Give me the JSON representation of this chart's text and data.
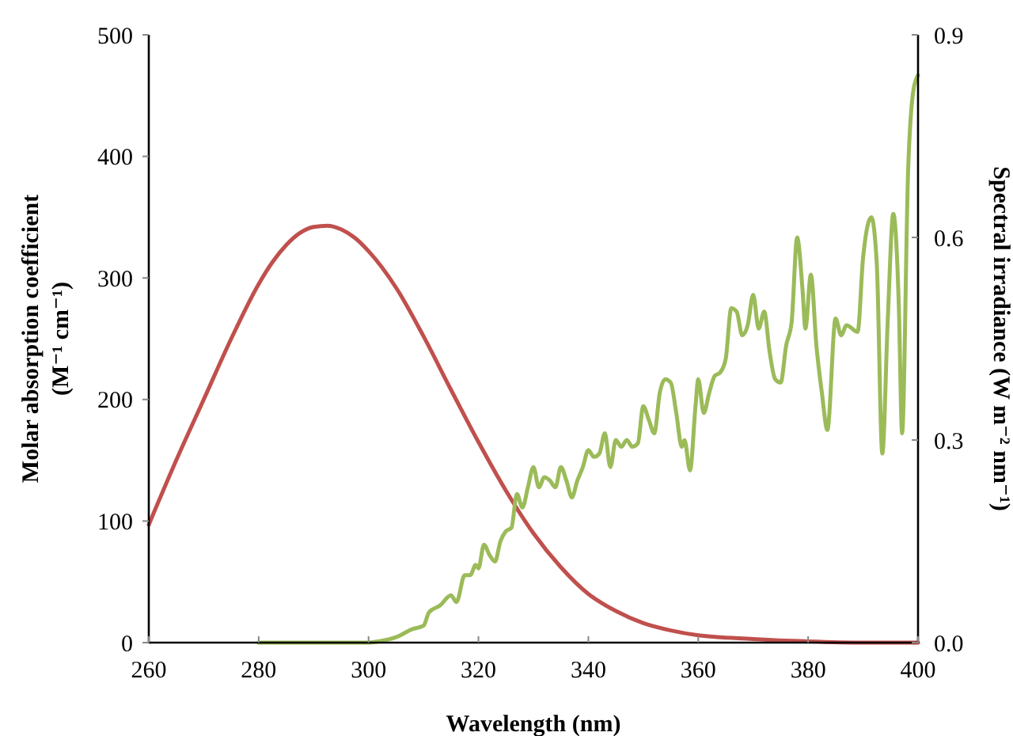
{
  "chart_data": {
    "type": "line",
    "xlabel": "Wavelength (nm)",
    "ylabel": "Molar absorption coefficient\n(M⁻¹ cm⁻¹)",
    "y2label": "Spectral irradiance (W m⁻² nm⁻¹)",
    "xlim": [
      260,
      400
    ],
    "xticks": [
      260,
      280,
      300,
      320,
      340,
      360,
      380,
      400
    ],
    "ylim": [
      0,
      500
    ],
    "yticks": [
      0,
      100,
      200,
      300,
      400,
      500
    ],
    "y2lim": [
      0,
      0.9
    ],
    "y2ticks": [
      {
        "value": 0,
        "label": "0.0"
      },
      {
        "value": 0.3,
        "label": "0.3"
      },
      {
        "value": 0.6,
        "label": "0.6"
      },
      {
        "value": 0.9,
        "label": "0.9"
      }
    ],
    "grid": false,
    "marker": "none",
    "line_style": "solid",
    "series": [
      {
        "color": "#c0504d",
        "x": [
          260,
          265,
          270,
          275,
          280,
          282.5,
          285,
          287.5,
          290,
          292.5,
          295,
          297.5,
          300,
          305,
          310,
          315,
          320,
          325,
          330,
          335,
          340,
          345,
          350,
          355,
          360,
          370,
          380,
          390,
          400
        ],
        "values": [
          97,
          150,
          200,
          250,
          295,
          313,
          327,
          337,
          342,
          343,
          340,
          333,
          322,
          292,
          252,
          208,
          165,
          125,
          90,
          62,
          40,
          26,
          16,
          10,
          6,
          3,
          1,
          0,
          0
        ]
      },
      {
        "color": "#9bbb59",
        "axis": "y2",
        "x": [
          280,
          300,
          302,
          305,
          308,
          310,
          311,
          313,
          315,
          316,
          317.5,
          318.5,
          319.5,
          320,
          321,
          322,
          323,
          324,
          325,
          326,
          327,
          328,
          329,
          330,
          331,
          332,
          333,
          334,
          335,
          336,
          337,
          338,
          339,
          340,
          341,
          342,
          343,
          344,
          345,
          346,
          347,
          348,
          349,
          350,
          351,
          352,
          353,
          354,
          355,
          356,
          357,
          357.5,
          358.5,
          359.5,
          360,
          361,
          362,
          363,
          364,
          365,
          366,
          367,
          368,
          369,
          370,
          371,
          372,
          373,
          374,
          375,
          376,
          377,
          378,
          379,
          379.5,
          380.5,
          381.5,
          382.5,
          383.5,
          385,
          386,
          387,
          389,
          390,
          391.5,
          392.5,
          393.5,
          394.5,
          395.5,
          396.5,
          397.1,
          398.2,
          399.2,
          400
        ],
        "values": [
          0,
          0,
          0.002,
          0.008,
          0.02,
          0.025,
          0.045,
          0.055,
          0.07,
          0.06,
          0.1,
          0.1,
          0.115,
          0.11,
          0.145,
          0.13,
          0.12,
          0.15,
          0.165,
          0.17,
          0.22,
          0.2,
          0.23,
          0.26,
          0.23,
          0.245,
          0.24,
          0.23,
          0.26,
          0.24,
          0.215,
          0.24,
          0.26,
          0.285,
          0.275,
          0.28,
          0.31,
          0.26,
          0.3,
          0.29,
          0.3,
          0.29,
          0.295,
          0.35,
          0.33,
          0.31,
          0.37,
          0.39,
          0.385,
          0.34,
          0.29,
          0.3,
          0.255,
          0.35,
          0.39,
          0.34,
          0.37,
          0.395,
          0.4,
          0.42,
          0.495,
          0.49,
          0.455,
          0.47,
          0.515,
          0.465,
          0.49,
          0.43,
          0.39,
          0.385,
          0.44,
          0.475,
          0.6,
          0.52,
          0.465,
          0.545,
          0.44,
          0.37,
          0.315,
          0.48,
          0.455,
          0.47,
          0.46,
          0.57,
          0.63,
          0.56,
          0.28,
          0.48,
          0.635,
          0.5,
          0.31,
          0.7,
          0.82,
          0.84
        ]
      }
    ]
  }
}
